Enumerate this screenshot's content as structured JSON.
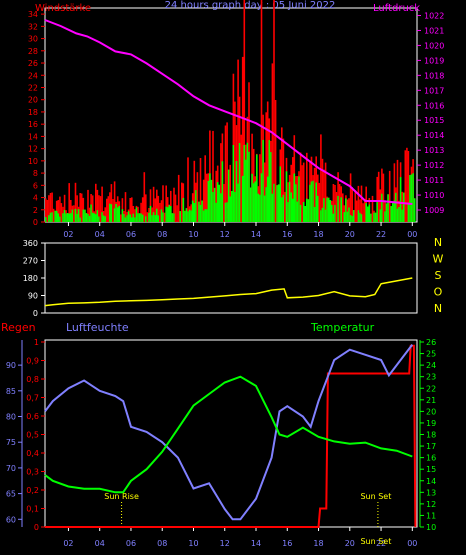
{
  "chart_data": [
    {
      "id": "wind",
      "type": "bar",
      "left_title": "Windstärke",
      "center_title": "24 hours graph day : 05 Juni 2022",
      "right_title": "Luftdruck",
      "y_left_ticks": [
        "0",
        "2",
        "4",
        "6",
        "8",
        "10",
        "12",
        "14",
        "16",
        "18",
        "20",
        "22",
        "24",
        "26",
        "28",
        "30",
        "32",
        "34"
      ],
      "y_right_ticks": [
        "1009",
        "1010",
        "1011",
        "1012",
        "1013",
        "1014",
        "1015",
        "1016",
        "1017",
        "1018",
        "1019",
        "1020",
        "1021",
        "1022"
      ],
      "x_ticks": [
        "02",
        "04",
        "06",
        "08",
        "10",
        "12",
        "14",
        "16",
        "18",
        "20",
        "22",
        "00"
      ],
      "ylim_left": [
        0,
        35
      ],
      "ylim_right": [
        1008.2,
        1022.5
      ],
      "xlim": [
        0.5,
        24.3
      ],
      "colors": {
        "gust": "#ff0000",
        "wind": "#00ff00",
        "pressure": "#ff00ff",
        "left_axis": "#ff0000",
        "right_axis": "#ff00ff"
      },
      "gust_envelope": [
        [
          0.5,
          6
        ],
        [
          2,
          6
        ],
        [
          4,
          7
        ],
        [
          6,
          4
        ],
        [
          8,
          6
        ],
        [
          10,
          10
        ],
        [
          11,
          14
        ],
        [
          12,
          20
        ],
        [
          13,
          26
        ],
        [
          14,
          22
        ],
        [
          15,
          24
        ],
        [
          16,
          14
        ],
        [
          17,
          12
        ],
        [
          18,
          10
        ],
        [
          19,
          8
        ],
        [
          20,
          6
        ],
        [
          21,
          6
        ],
        [
          22,
          8
        ],
        [
          23,
          10
        ],
        [
          24,
          12
        ]
      ],
      "wind_envelope": [
        [
          0.5,
          2
        ],
        [
          2,
          2
        ],
        [
          4,
          3
        ],
        [
          6,
          2
        ],
        [
          8,
          3
        ],
        [
          10,
          5
        ],
        [
          11,
          7
        ],
        [
          12,
          10
        ],
        [
          13,
          13
        ],
        [
          14,
          12
        ],
        [
          15,
          12
        ],
        [
          16,
          8
        ],
        [
          17,
          7
        ],
        [
          18,
          6
        ],
        [
          19,
          4
        ],
        [
          20,
          3
        ],
        [
          21,
          3
        ],
        [
          22,
          4
        ],
        [
          23,
          6
        ],
        [
          24,
          8
        ]
      ],
      "pressure": [
        [
          0.5,
          1021.7
        ],
        [
          1.5,
          1021.3
        ],
        [
          2.5,
          1020.8
        ],
        [
          3.2,
          1020.6
        ],
        [
          4,
          1020.2
        ],
        [
          5,
          1019.6
        ],
        [
          6,
          1019.4
        ],
        [
          7,
          1018.8
        ],
        [
          8,
          1018.1
        ],
        [
          9,
          1017.4
        ],
        [
          10,
          1016.6
        ],
        [
          11,
          1016.0
        ],
        [
          12,
          1015.6
        ],
        [
          13,
          1015.2
        ],
        [
          14,
          1014.8
        ],
        [
          15,
          1014.2
        ],
        [
          16,
          1013.4
        ],
        [
          17,
          1012.6
        ],
        [
          18,
          1011.8
        ],
        [
          19,
          1011.2
        ],
        [
          20,
          1010.6
        ],
        [
          21,
          1009.6
        ],
        [
          22,
          1009.6
        ],
        [
          23,
          1009.5
        ],
        [
          24,
          1009.4
        ]
      ]
    },
    {
      "id": "direction",
      "type": "line",
      "y_ticks": [
        "0",
        "90",
        "180",
        "270",
        "360"
      ],
      "ylim": [
        0,
        360
      ],
      "xlim": [
        0.5,
        24.3
      ],
      "compass_labels": [
        "N",
        "W",
        "S",
        "O",
        "N"
      ],
      "color": "#ffff00",
      "values": [
        [
          0.5,
          38
        ],
        [
          1,
          42
        ],
        [
          2,
          50
        ],
        [
          3,
          52
        ],
        [
          4,
          55
        ],
        [
          5,
          60
        ],
        [
          6,
          63
        ],
        [
          7,
          65
        ],
        [
          8,
          68
        ],
        [
          9,
          72
        ],
        [
          10,
          75
        ],
        [
          11,
          82
        ],
        [
          12,
          88
        ],
        [
          13,
          95
        ],
        [
          14,
          100
        ],
        [
          15,
          118
        ],
        [
          15.8,
          124
        ],
        [
          16,
          78
        ],
        [
          17,
          82
        ],
        [
          18,
          90
        ],
        [
          19,
          110
        ],
        [
          20,
          88
        ],
        [
          21,
          84
        ],
        [
          21.6,
          95
        ],
        [
          22,
          150
        ],
        [
          23,
          165
        ],
        [
          24,
          180
        ]
      ]
    },
    {
      "id": "climate",
      "type": "line",
      "left_outer_title": "Regen",
      "left_inner_title": "Luftfeuchte",
      "right_title": "Temperatur",
      "rain_ticks": [
        "0",
        "0,1",
        "0,2",
        "0,3",
        "0,4",
        "0,5",
        "0,6",
        "0,7",
        "0,8",
        "0,9",
        "1"
      ],
      "humidity_ticks": [
        "60",
        "65",
        "70",
        "75",
        "80",
        "85",
        "90"
      ],
      "temp_ticks": [
        "10",
        "11",
        "12",
        "13",
        "14",
        "15",
        "16",
        "17",
        "18",
        "19",
        "20",
        "21",
        "22",
        "23",
        "24",
        "25",
        "26"
      ],
      "x_ticks": [
        "02",
        "04",
        "06",
        "08",
        "10",
        "12",
        "14",
        "16",
        "18",
        "20",
        "22",
        "00"
      ],
      "ylim_rain": [
        0,
        1
      ],
      "ylim_humidity": [
        58.5,
        94.5
      ],
      "ylim_temp": [
        10,
        26
      ],
      "xlim": [
        0.5,
        24.3
      ],
      "sun_rise_label": "Sun Rise",
      "sun_set_label": "Sun Set",
      "sun_set_label_2": "Sun Set",
      "sun_rise_hour": 5.4,
      "sun_set_hour": 21.8,
      "colors": {
        "rain": "#ff0000",
        "humidity": "#8080ff",
        "temperature": "#00ff00",
        "left_outer_axis": "#ff0000",
        "left_inner_axis": "#8080ff",
        "right_axis": "#00ff00"
      },
      "humidity": [
        [
          0.5,
          81
        ],
        [
          1,
          83
        ],
        [
          2,
          85.5
        ],
        [
          3,
          87
        ],
        [
          3.5,
          86
        ],
        [
          4,
          85
        ],
        [
          5,
          84
        ],
        [
          5.5,
          83
        ],
        [
          6,
          78
        ],
        [
          7,
          77
        ],
        [
          8,
          75
        ],
        [
          9,
          72
        ],
        [
          10,
          66
        ],
        [
          11,
          67
        ],
        [
          12,
          62
        ],
        [
          12.5,
          60
        ],
        [
          13,
          60
        ],
        [
          14,
          64
        ],
        [
          15,
          72
        ],
        [
          15.5,
          81
        ],
        [
          16,
          82
        ],
        [
          17,
          80
        ],
        [
          17.5,
          78
        ],
        [
          18,
          83
        ],
        [
          19,
          91
        ],
        [
          20,
          93
        ],
        [
          21,
          92
        ],
        [
          22,
          91
        ],
        [
          22.5,
          88
        ],
        [
          23,
          90
        ],
        [
          24,
          94
        ]
      ],
      "temperature": [
        [
          0.5,
          14.5
        ],
        [
          1,
          14
        ],
        [
          2,
          13.5
        ],
        [
          3,
          13.3
        ],
        [
          4,
          13.3
        ],
        [
          5,
          13
        ],
        [
          5.5,
          13
        ],
        [
          6,
          14
        ],
        [
          7,
          15
        ],
        [
          8,
          16.5
        ],
        [
          9,
          18.5
        ],
        [
          10,
          20.5
        ],
        [
          11,
          21.5
        ],
        [
          12,
          22.5
        ],
        [
          13,
          23
        ],
        [
          14,
          22.2
        ],
        [
          15,
          19.5
        ],
        [
          15.5,
          18
        ],
        [
          16,
          17.8
        ],
        [
          17,
          18.6
        ],
        [
          18,
          17.8
        ],
        [
          19,
          17.4
        ],
        [
          20,
          17.2
        ],
        [
          21,
          17.3
        ],
        [
          22,
          16.8
        ],
        [
          23,
          16.6
        ],
        [
          24,
          16.1
        ]
      ],
      "rain": [
        [
          0.5,
          0
        ],
        [
          18,
          0
        ],
        [
          18.1,
          0.1
        ],
        [
          18.5,
          0.1
        ],
        [
          18.6,
          0.83
        ],
        [
          23.8,
          0.83
        ],
        [
          23.9,
          0.98
        ],
        [
          24.1,
          0.98
        ],
        [
          24.2,
          0
        ]
      ]
    }
  ]
}
